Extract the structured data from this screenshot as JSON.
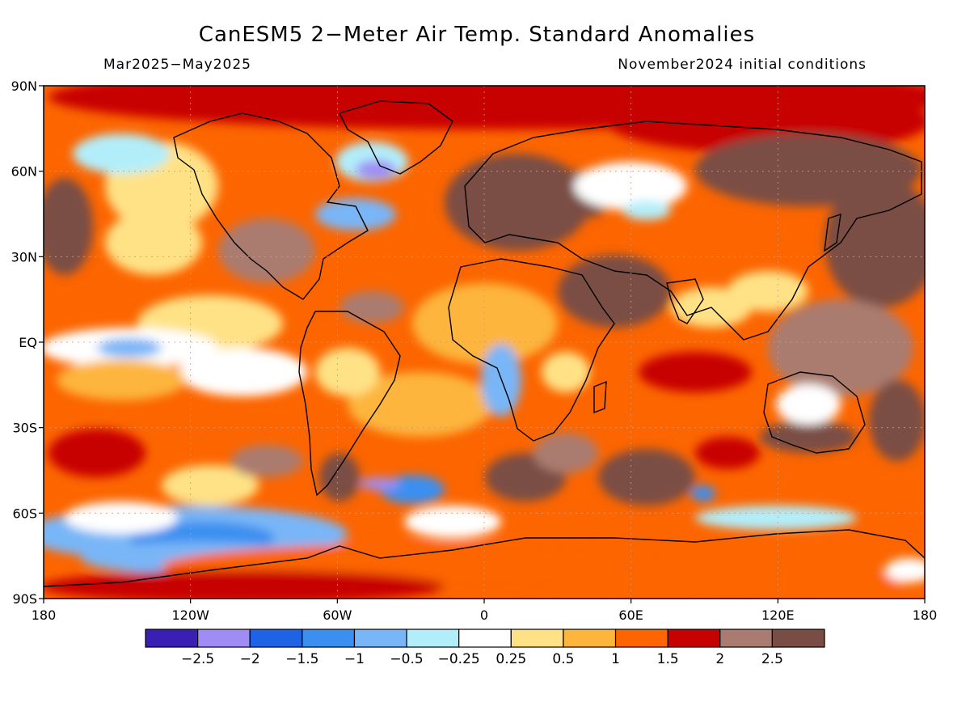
{
  "title": "CanESM5 2−Meter Air Temp. Standard Anomalies",
  "period": "Mar2025−May2025",
  "init": "November2024 initial conditions",
  "lat_labels": [
    "90N",
    "60N",
    "30N",
    "EQ",
    "30S",
    "60S",
    "90S"
  ],
  "lon_labels": [
    "180",
    "120W",
    "60W",
    "0",
    "60E",
    "120E",
    "180"
  ],
  "colorbar": {
    "colors": [
      "#3a1fb4",
      "#9f8cf4",
      "#1e63e6",
      "#3b8ff0",
      "#79b6f7",
      "#b2eefa",
      "#ffffff",
      "#ffe286",
      "#fdb53c",
      "#fc6500",
      "#c70000",
      "#aa7b70",
      "#7a4d44"
    ],
    "labels": [
      "−2.5",
      "−2",
      "−1.5",
      "−1",
      "−0.5",
      "−0.25",
      "0.25",
      "0.5",
      "1",
      "1.5",
      "2",
      "2.5"
    ]
  }
}
